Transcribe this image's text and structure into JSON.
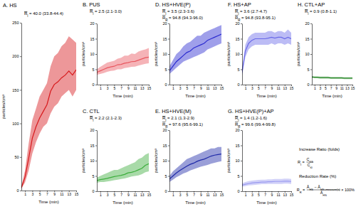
{
  "chart_data": [
    {
      "type": "line",
      "title": "A. HS",
      "color": "#d7191c",
      "x": [
        0,
        1,
        2,
        3,
        4,
        5,
        6,
        7,
        8,
        9,
        10,
        11,
        12,
        13,
        14,
        15
      ],
      "values": [
        4,
        20,
        48,
        78,
        95,
        108,
        118,
        128,
        148,
        158,
        162,
        168,
        172,
        178,
        172,
        180
      ],
      "upper": [
        6,
        30,
        70,
        105,
        122,
        140,
        150,
        160,
        185,
        200,
        205,
        215,
        220,
        230,
        225,
        220
      ],
      "lower": [
        3,
        12,
        30,
        55,
        72,
        85,
        95,
        100,
        115,
        125,
        130,
        140,
        145,
        150,
        140,
        150
      ],
      "xlim": [
        0,
        15
      ],
      "xticks": [
        1,
        3,
        5,
        7,
        9,
        11,
        13,
        15
      ],
      "ylim": [
        0,
        250
      ],
      "yticks": [
        0,
        50,
        100,
        150,
        200,
        250
      ],
      "xlabel": "Time (min)",
      "ylabel": "particles/cm³",
      "annotations": [
        {
          "symbol": "R",
          "subscript": "I",
          "text": "= 40.0 (33.8-44.4)"
        }
      ]
    },
    {
      "type": "line",
      "title": "B. PUS",
      "color": "#e8575f",
      "x": [
        0,
        1,
        2,
        3,
        4,
        5,
        6,
        7,
        8,
        9,
        10,
        11,
        12,
        13,
        14,
        15
      ],
      "values": [
        4.0,
        4.5,
        5.0,
        5.5,
        5.8,
        6.0,
        6.5,
        6.6,
        7.0,
        7.2,
        7.5,
        7.6,
        8.0,
        8.4,
        8.8,
        9.0
      ],
      "upper": [
        5.0,
        5.8,
        6.5,
        7.2,
        7.5,
        7.8,
        8.5,
        8.8,
        9.5,
        9.5,
        10.2,
        10.0,
        10.8,
        11.2,
        11.5,
        12.0
      ],
      "lower": [
        3.2,
        3.5,
        3.8,
        4.2,
        4.5,
        4.6,
        5.0,
        5.0,
        5.4,
        5.6,
        5.8,
        5.9,
        6.2,
        6.5,
        6.8,
        7.0
      ],
      "xlim": [
        0,
        15
      ],
      "xticks": [
        1,
        3,
        5,
        7,
        9,
        11,
        13,
        15
      ],
      "ylim": [
        0,
        20
      ],
      "yticks": [
        0,
        5,
        10,
        15,
        20
      ],
      "xlabel": "Time (min)",
      "ylabel": "particles/cm³",
      "annotations": [
        {
          "symbol": "R",
          "subscript": "I",
          "text": "= 2.5 (2.1-3.0)"
        }
      ]
    },
    {
      "type": "line",
      "title": "C. CTL",
      "color": "#3dae3d",
      "x": [
        0,
        1,
        2,
        3,
        4,
        5,
        6,
        7,
        8,
        9,
        10,
        11,
        12,
        13,
        14,
        15
      ],
      "values": [
        3.5,
        3.8,
        4.0,
        4.2,
        4.5,
        4.8,
        5.0,
        5.2,
        5.5,
        6.0,
        6.2,
        6.5,
        7.0,
        7.5,
        8.5,
        9.0
      ],
      "upper": [
        4.5,
        5.0,
        5.5,
        6.0,
        6.5,
        7.0,
        7.0,
        7.5,
        8.0,
        8.5,
        9.0,
        9.5,
        10.5,
        11.0,
        12.0,
        12.5
      ],
      "lower": [
        2.8,
        3.0,
        3.0,
        3.2,
        3.4,
        3.6,
        3.8,
        4.0,
        4.2,
        4.5,
        4.8,
        5.0,
        5.2,
        5.6,
        6.2,
        6.5
      ],
      "xlim": [
        0,
        15
      ],
      "xticks": [
        1,
        3,
        5,
        7,
        9,
        11,
        13,
        15
      ],
      "ylim": [
        0,
        20
      ],
      "yticks": [
        0,
        5,
        10,
        15,
        20
      ],
      "xlabel": "Time (min)",
      "ylabel": "particles/cm³",
      "annotations": [
        {
          "symbol": "R",
          "subscript": "I",
          "text": "= 2.2 (2.1-2.3)"
        }
      ]
    },
    {
      "type": "line",
      "title": "D. HS+HVE(P)",
      "color": "#2b2bd0",
      "x": [
        0,
        1,
        2,
        3,
        4,
        5,
        6,
        7,
        8,
        9,
        10,
        11,
        12,
        13,
        14,
        15
      ],
      "values": [
        4.5,
        6.0,
        7.5,
        8.5,
        9.5,
        10.5,
        11.0,
        12.0,
        12.5,
        13.0,
        13.5,
        14.5,
        15.0,
        15.5,
        16.0,
        16.5
      ],
      "upper": [
        6,
        8,
        10,
        11,
        12.5,
        13.5,
        14,
        15,
        16,
        16,
        17,
        17.5,
        18,
        18.5,
        19,
        19.5
      ],
      "lower": [
        3.5,
        4.5,
        5.5,
        6.5,
        7.5,
        8,
        8.5,
        9,
        9.5,
        10,
        10.5,
        11.5,
        12,
        12.5,
        13,
        13.5
      ],
      "xlim": [
        0,
        15
      ],
      "xticks": [
        1,
        3,
        5,
        7,
        9,
        11,
        13,
        15
      ],
      "ylim": [
        0,
        20
      ],
      "yticks": [
        0,
        5,
        10,
        15,
        20
      ],
      "xlabel": "Time (min)",
      "ylabel": "particles/cm³",
      "annotations": [
        {
          "symbol": "R",
          "subscript": "I",
          "text": "= 3.5 (2.3-3.6)"
        },
        {
          "symbol": "R",
          "subscript": "R",
          "text": "= 94.8 (94.3-96.0)"
        }
      ]
    },
    {
      "type": "line",
      "title": "E. HS+HVE(M)",
      "color": "#1f2aa8",
      "x": [
        0,
        1,
        2,
        3,
        4,
        5,
        6,
        7,
        8,
        9,
        10,
        11,
        12,
        13,
        14,
        15
      ],
      "values": [
        4.0,
        5.0,
        6.0,
        6.8,
        7.5,
        8.2,
        8.8,
        9.2,
        9.8,
        10.2,
        10.5,
        11.0,
        11.5,
        11.8,
        12.0,
        12.2
      ],
      "upper": [
        5,
        6.5,
        7.5,
        8.5,
        9.5,
        10.5,
        11,
        11.5,
        12,
        12.5,
        13,
        13.5,
        14,
        14,
        14.5,
        14.5
      ],
      "lower": [
        3,
        3.8,
        4.6,
        5.2,
        5.8,
        6.2,
        6.8,
        7.2,
        7.6,
        8,
        8.3,
        8.6,
        9,
        9.3,
        9.6,
        9.8
      ],
      "xlim": [
        0,
        15
      ],
      "xticks": [
        1,
        3,
        5,
        7,
        9,
        11,
        13,
        15
      ],
      "ylim": [
        0,
        20
      ],
      "yticks": [
        0,
        5,
        10,
        15,
        20
      ],
      "xlabel": "Time (min)",
      "ylabel": "particles/cm³",
      "annotations": [
        {
          "symbol": "R",
          "subscript": "I",
          "text": "= 2.1 (1.3-2.9)"
        },
        {
          "symbol": "R",
          "subscript": "R",
          "text": "= 97.6 (95.6-99.1)"
        }
      ]
    },
    {
      "type": "line",
      "title": "F. HS+AP",
      "color": "#6a6ae8",
      "x": [
        0,
        1,
        2,
        3,
        4,
        5,
        6,
        7,
        8,
        9,
        10,
        11,
        12,
        13,
        14,
        15
      ],
      "values": [
        4,
        11,
        13.5,
        14.5,
        15,
        15,
        15,
        15,
        15.2,
        15.5,
        15.2,
        15.5,
        15.5,
        15,
        15.5,
        15
      ],
      "upper": [
        5,
        13,
        15.5,
        16.5,
        17,
        17,
        17,
        17,
        17.5,
        17.5,
        17,
        17.5,
        17.5,
        17,
        18,
        17
      ],
      "lower": [
        3,
        9,
        11.5,
        12.5,
        13,
        13,
        13,
        13,
        13,
        13.5,
        13,
        13.5,
        13.5,
        13,
        13.5,
        13
      ],
      "xlim": [
        0,
        15
      ],
      "xticks": [
        1,
        3,
        5,
        7,
        9,
        11,
        13,
        15
      ],
      "ylim": [
        0,
        20
      ],
      "yticks": [
        0,
        5,
        10,
        15,
        20
      ],
      "xlabel": "Time (min)",
      "ylabel": "particles/cm³",
      "annotations": [
        {
          "symbol": "R",
          "subscript": "I",
          "text": "= 3.6 (2.7-4.7)"
        },
        {
          "symbol": "R",
          "subscript": "R",
          "text": "= 94.8 (93.8-95.1)"
        }
      ]
    },
    {
      "type": "line",
      "title": "G. HS+HVE(P)+AP",
      "color": "#9a9af0",
      "x": [
        0,
        1,
        2,
        3,
        4,
        5,
        6,
        7,
        8,
        9,
        10,
        11,
        12,
        13,
        14,
        15
      ],
      "values": [
        2.0,
        2.3,
        2.5,
        2.7,
        2.8,
        2.9,
        3.0,
        3.0,
        3.1,
        3.1,
        3.2,
        3.2,
        3.2,
        3.3,
        3.3,
        3.2
      ],
      "upper": [
        2.6,
        3.0,
        3.3,
        3.5,
        3.6,
        3.7,
        3.8,
        3.8,
        3.9,
        3.9,
        4.0,
        4.0,
        4.0,
        4.1,
        4.1,
        4.0
      ],
      "lower": [
        1.5,
        1.7,
        1.9,
        2.0,
        2.1,
        2.2,
        2.3,
        2.3,
        2.4,
        2.4,
        2.4,
        2.4,
        2.4,
        2.5,
        2.5,
        2.4
      ],
      "xlim": [
        0,
        15
      ],
      "xticks": [
        1,
        3,
        5,
        7,
        9,
        11,
        13,
        15
      ],
      "ylim": [
        0,
        20
      ],
      "yticks": [
        0,
        5,
        10,
        15,
        20
      ],
      "xlabel": "Time (min)",
      "ylabel": "particles/cm³",
      "annotations": [
        {
          "symbol": "R",
          "subscript": "I",
          "text": "= 1.4 (1.2-1.6)"
        },
        {
          "symbol": "R",
          "subscript": "R",
          "text": "= 99.6 (99.4-99.8)"
        }
      ]
    },
    {
      "type": "line",
      "title": "H. CTL+AP",
      "color": "#2e8b2e",
      "x": [
        0,
        1,
        2,
        3,
        4,
        5,
        6,
        7,
        8,
        9,
        10,
        11,
        12,
        13,
        14,
        15
      ],
      "values": [
        2.5,
        2.4,
        2.4,
        2.3,
        2.3,
        2.3,
        2.3,
        2.2,
        2.2,
        2.2,
        2.2,
        2.2,
        2.1,
        2.1,
        2.1,
        2.1
      ],
      "upper": [
        2.8,
        2.7,
        2.7,
        2.6,
        2.6,
        2.6,
        2.6,
        2.5,
        2.5,
        2.5,
        2.5,
        2.5,
        2.4,
        2.4,
        2.4,
        2.4
      ],
      "lower": [
        2.2,
        2.1,
        2.1,
        2.0,
        2.0,
        2.0,
        2.0,
        1.9,
        1.9,
        1.9,
        1.9,
        1.9,
        1.8,
        1.8,
        1.8,
        1.8
      ],
      "xlim": [
        0,
        15
      ],
      "xticks": [
        1,
        3,
        5,
        7,
        9,
        11,
        13,
        15
      ],
      "ylim": [
        0,
        20
      ],
      "yticks": [
        0,
        5,
        10,
        15,
        20
      ],
      "xlabel": "Time (min)",
      "ylabel": "particles/cm³",
      "annotations": [
        {
          "symbol": "R",
          "subscript": "I",
          "text": "= 0.9 (0.8-1.1)"
        }
      ]
    }
  ],
  "formulas": [
    {
      "title": "Increase Ratio (folds)",
      "lhs": [
        {
          "t": "R",
          "sub": "I"
        },
        {
          "t": " = "
        }
      ],
      "numerator": [
        {
          "t": "C",
          "sub": "t15"
        }
      ],
      "denominator": [
        {
          "t": "C",
          "sub": "t0"
        }
      ]
    },
    {
      "title": "Reduction Rate (%)",
      "lhs": [
        {
          "t": "R",
          "sub": "R"
        },
        {
          "t": " = "
        }
      ],
      "numerator": [
        {
          "t": "Ā",
          "sub": "HS"
        },
        {
          "t": " − "
        },
        {
          "t": "Ā",
          "sub": "HS+measure(s)"
        }
      ],
      "denominator": [
        {
          "t": "Ā",
          "sub": "HS"
        }
      ],
      "suffix": "× 100%"
    }
  ]
}
